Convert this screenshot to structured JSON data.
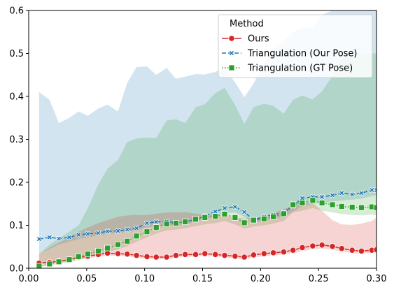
{
  "chart_data": {
    "type": "line",
    "xlim": [
      0.0,
      0.3
    ],
    "ylim": [
      0.0,
      0.6
    ],
    "xticks": [
      "0.00",
      "0.05",
      "0.10",
      "0.15",
      "0.20",
      "0.25",
      "0.30"
    ],
    "yticks": [
      "0.0",
      "0.1",
      "0.2",
      "0.3",
      "0.4",
      "0.5",
      "0.6"
    ],
    "grid": false,
    "legend": {
      "title": "Method",
      "placement": "top-right"
    },
    "x": [
      0.009,
      0.018,
      0.026,
      0.035,
      0.043,
      0.051,
      0.06,
      0.068,
      0.077,
      0.085,
      0.093,
      0.102,
      0.11,
      0.119,
      0.127,
      0.135,
      0.144,
      0.152,
      0.161,
      0.169,
      0.178,
      0.186,
      0.194,
      0.203,
      0.211,
      0.22,
      0.228,
      0.236,
      0.245,
      0.253,
      0.262,
      0.27,
      0.279,
      0.287,
      0.296,
      0.3
    ],
    "series": [
      {
        "name": "Ours",
        "color": "#d62728",
        "marker": "circle",
        "linestyle": "solid",
        "values": [
          0.012,
          0.014,
          0.016,
          0.02,
          0.025,
          0.028,
          0.032,
          0.035,
          0.034,
          0.033,
          0.03,
          0.027,
          0.026,
          0.026,
          0.03,
          0.032,
          0.032,
          0.034,
          0.032,
          0.03,
          0.028,
          0.026,
          0.031,
          0.034,
          0.036,
          0.038,
          0.042,
          0.048,
          0.052,
          0.054,
          0.051,
          0.046,
          0.042,
          0.04,
          0.042,
          0.043
        ],
        "band_low": [
          0.01,
          0.011,
          0.013,
          0.016,
          0.02,
          0.023,
          0.027,
          0.029,
          0.029,
          0.028,
          0.025,
          0.022,
          0.021,
          0.021,
          0.025,
          0.027,
          0.027,
          0.029,
          0.027,
          0.025,
          0.023,
          0.021,
          0.025,
          0.028,
          0.03,
          0.032,
          0.035,
          0.04,
          0.044,
          0.046,
          0.043,
          0.039,
          0.035,
          0.034,
          0.036,
          0.037
        ],
        "band_high": [
          0.033,
          0.048,
          0.06,
          0.072,
          0.085,
          0.095,
          0.105,
          0.112,
          0.12,
          0.123,
          0.124,
          0.124,
          0.127,
          0.13,
          0.13,
          0.131,
          0.127,
          0.125,
          0.125,
          0.122,
          0.119,
          0.116,
          0.117,
          0.121,
          0.128,
          0.138,
          0.146,
          0.15,
          0.152,
          0.134,
          0.112,
          0.102,
          0.101,
          0.104,
          0.11,
          0.118
        ]
      },
      {
        "name": "Triangulation (Our Pose)",
        "color": "#1f77b4",
        "marker": "x",
        "linestyle": "dashed",
        "values": [
          0.068,
          0.072,
          0.069,
          0.072,
          0.078,
          0.08,
          0.082,
          0.086,
          0.087,
          0.09,
          0.093,
          0.105,
          0.108,
          0.109,
          0.106,
          0.108,
          0.113,
          0.122,
          0.132,
          0.14,
          0.143,
          0.131,
          0.112,
          0.12,
          0.125,
          0.13,
          0.145,
          0.163,
          0.166,
          0.166,
          0.17,
          0.175,
          0.172,
          0.175,
          0.182,
          0.182
        ],
        "band_low": [
          0.033,
          0.045,
          0.055,
          0.062,
          0.068,
          0.072,
          0.076,
          0.08,
          0.082,
          0.085,
          0.088,
          0.095,
          0.098,
          0.1,
          0.1,
          0.102,
          0.108,
          0.115,
          0.122,
          0.128,
          0.13,
          0.12,
          0.105,
          0.11,
          0.115,
          0.12,
          0.132,
          0.145,
          0.15,
          0.152,
          0.155,
          0.158,
          0.16,
          0.162,
          0.168,
          0.17
        ],
        "band_high": [
          0.41,
          0.392,
          0.338,
          0.35,
          0.365,
          0.355,
          0.372,
          0.381,
          0.365,
          0.432,
          0.468,
          0.47,
          0.45,
          0.466,
          0.441,
          0.446,
          0.452,
          0.451,
          0.457,
          0.466,
          0.433,
          0.398,
          0.43,
          0.48,
          0.51,
          0.53,
          0.55,
          0.56,
          0.56,
          0.59,
          0.6,
          0.6,
          0.6,
          0.6,
          0.6,
          0.6
        ]
      },
      {
        "name": "Triangulation (GT Pose)",
        "color": "#2ca02c",
        "marker": "square",
        "linestyle": "dotted",
        "values": [
          0.005,
          0.01,
          0.015,
          0.02,
          0.027,
          0.033,
          0.04,
          0.047,
          0.055,
          0.063,
          0.075,
          0.085,
          0.095,
          0.103,
          0.105,
          0.108,
          0.114,
          0.118,
          0.121,
          0.126,
          0.118,
          0.106,
          0.112,
          0.115,
          0.12,
          0.127,
          0.148,
          0.152,
          0.158,
          0.152,
          0.148,
          0.144,
          0.142,
          0.141,
          0.143,
          0.141
        ],
        "band_low": [
          0.003,
          0.006,
          0.01,
          0.014,
          0.019,
          0.025,
          0.031,
          0.037,
          0.044,
          0.051,
          0.062,
          0.072,
          0.081,
          0.088,
          0.09,
          0.093,
          0.098,
          0.102,
          0.105,
          0.11,
          0.102,
          0.092,
          0.097,
          0.1,
          0.104,
          0.11,
          0.13,
          0.134,
          0.14,
          0.134,
          0.13,
          0.126,
          0.124,
          0.123,
          0.125,
          0.123
        ],
        "band_high": [
          0.033,
          0.055,
          0.07,
          0.085,
          0.1,
          0.14,
          0.195,
          0.232,
          0.252,
          0.294,
          0.302,
          0.304,
          0.303,
          0.344,
          0.347,
          0.338,
          0.375,
          0.382,
          0.408,
          0.42,
          0.38,
          0.336,
          0.375,
          0.383,
          0.378,
          0.36,
          0.392,
          0.402,
          0.393,
          0.412,
          0.448,
          0.488,
          0.5,
          0.5,
          0.5,
          0.5
        ]
      }
    ]
  }
}
